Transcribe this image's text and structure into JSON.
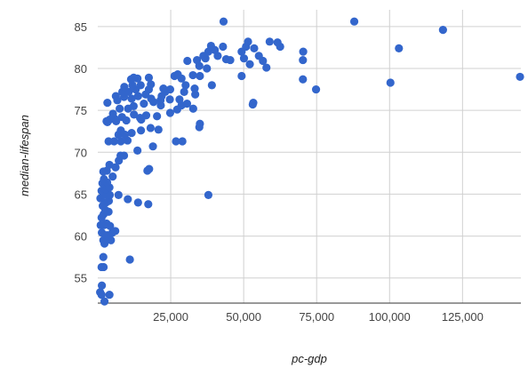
{
  "chart_data": {
    "type": "scatter",
    "title": "",
    "xlabel": "pc-gdp",
    "ylabel": "median-lifespan",
    "xlim": [
      0,
      145000
    ],
    "ylim": [
      52,
      87
    ],
    "x_ticks": [
      25000,
      50000,
      75000,
      100000,
      125000
    ],
    "x_tick_labels": [
      "25,000",
      "50,000",
      "75,000",
      "100,000",
      "125,000"
    ],
    "y_ticks": [
      55,
      60,
      65,
      70,
      75,
      80,
      85
    ],
    "y_tick_labels": [
      "55",
      "60",
      "65",
      "70",
      "75",
      "80",
      "85"
    ],
    "grid": true,
    "legend": "none",
    "marker_color": "#3366cc",
    "series": [
      {
        "points": [
          [
            800,
            53.3
          ],
          [
            1300,
            53.0
          ],
          [
            2300,
            52.2
          ],
          [
            4000,
            53.0
          ],
          [
            1400,
            54.1
          ],
          [
            1300,
            56.3
          ],
          [
            2000,
            56.3
          ],
          [
            1900,
            57.5
          ],
          [
            11000,
            57.2
          ],
          [
            1900,
            59.5
          ],
          [
            2300,
            59.1
          ],
          [
            2800,
            59.5
          ],
          [
            4500,
            59.5
          ],
          [
            1400,
            60.4
          ],
          [
            3200,
            60.1
          ],
          [
            5000,
            60.4
          ],
          [
            6000,
            60.6
          ],
          [
            1000,
            61.3
          ],
          [
            2100,
            61.3
          ],
          [
            3000,
            61.5
          ],
          [
            4200,
            61.2
          ],
          [
            1300,
            62.2
          ],
          [
            2000,
            62.6
          ],
          [
            3700,
            62.9
          ],
          [
            2600,
            63.1
          ],
          [
            1700,
            63.6
          ],
          [
            2800,
            64.0
          ],
          [
            3800,
            64.2
          ],
          [
            900,
            64.5
          ],
          [
            2000,
            64.9
          ],
          [
            4100,
            64.9
          ],
          [
            7100,
            64.9
          ],
          [
            10300,
            64.4
          ],
          [
            13800,
            64.0
          ],
          [
            17300,
            63.8
          ],
          [
            37900,
            64.9
          ],
          [
            1300,
            65.4
          ],
          [
            2700,
            65.6
          ],
          [
            4000,
            65.8
          ],
          [
            1600,
            66.3
          ],
          [
            3200,
            66.4
          ],
          [
            2100,
            66.8
          ],
          [
            5100,
            67.1
          ],
          [
            1900,
            67.7
          ],
          [
            3100,
            67.8
          ],
          [
            6100,
            68.2
          ],
          [
            4000,
            68.5
          ],
          [
            7200,
            69.0
          ],
          [
            17000,
            67.8
          ],
          [
            17600,
            68.0
          ],
          [
            7800,
            69.6
          ],
          [
            9000,
            69.6
          ],
          [
            13600,
            70.2
          ],
          [
            18900,
            70.7
          ],
          [
            3700,
            71.3
          ],
          [
            5600,
            71.3
          ],
          [
            7900,
            71.3
          ],
          [
            10200,
            71.4
          ],
          [
            26800,
            71.3
          ],
          [
            29000,
            71.3
          ],
          [
            7100,
            72.1
          ],
          [
            9300,
            72.1
          ],
          [
            11600,
            72.3
          ],
          [
            14800,
            72.6
          ],
          [
            18100,
            72.9
          ],
          [
            20800,
            72.7
          ],
          [
            34800,
            73.0
          ],
          [
            35000,
            73.4
          ],
          [
            3300,
            73.6
          ],
          [
            4100,
            73.9
          ],
          [
            5800,
            74.0
          ],
          [
            6300,
            73.7
          ],
          [
            8300,
            74.2
          ],
          [
            9800,
            73.8
          ],
          [
            12400,
            74.5
          ],
          [
            14500,
            74.1
          ],
          [
            16600,
            74.4
          ],
          [
            20300,
            74.3
          ],
          [
            24800,
            74.7
          ],
          [
            27200,
            75.1
          ],
          [
            32700,
            75.2
          ],
          [
            5200,
            74.6
          ],
          [
            7500,
            75.2
          ],
          [
            10400,
            75.2
          ],
          [
            12300,
            75.5
          ],
          [
            15800,
            75.8
          ],
          [
            19100,
            76.0
          ],
          [
            21500,
            76.2
          ],
          [
            28700,
            75.6
          ],
          [
            30600,
            75.8
          ],
          [
            53100,
            75.7
          ],
          [
            53300,
            75.9
          ],
          [
            3300,
            75.9
          ],
          [
            6700,
            76.2
          ],
          [
            9000,
            76.6
          ],
          [
            11600,
            76.4
          ],
          [
            13800,
            76.7
          ],
          [
            16400,
            76.9
          ],
          [
            18300,
            76.4
          ],
          [
            21900,
            76.7
          ],
          [
            24700,
            76.3
          ],
          [
            28000,
            76.3
          ],
          [
            33400,
            76.9
          ],
          [
            6200,
            76.7
          ],
          [
            8400,
            77.2
          ],
          [
            10600,
            77.2
          ],
          [
            13000,
            77.5
          ],
          [
            17500,
            77.5
          ],
          [
            23100,
            77.2
          ],
          [
            24800,
            77.5
          ],
          [
            29600,
            77.2
          ],
          [
            33200,
            77.6
          ],
          [
            74800,
            77.5
          ],
          [
            9100,
            77.8
          ],
          [
            11900,
            78.0
          ],
          [
            14700,
            78.0
          ],
          [
            18200,
            78.1
          ],
          [
            22500,
            77.6
          ],
          [
            30100,
            78.0
          ],
          [
            39100,
            78.0
          ],
          [
            100300,
            78.3
          ],
          [
            11400,
            78.7
          ],
          [
            13600,
            78.8
          ],
          [
            17500,
            78.9
          ],
          [
            26300,
            79.1
          ],
          [
            28700,
            78.8
          ],
          [
            35000,
            79.1
          ],
          [
            49300,
            79.1
          ],
          [
            70300,
            78.7
          ],
          [
            144700,
            79.0
          ],
          [
            12300,
            78.9
          ],
          [
            27400,
            79.3
          ],
          [
            34800,
            80.3
          ],
          [
            37400,
            80.0
          ],
          [
            52100,
            80.5
          ],
          [
            56600,
            80.9
          ],
          [
            57800,
            80.1
          ],
          [
            30700,
            80.9
          ],
          [
            34000,
            81.0
          ],
          [
            36900,
            81.2
          ],
          [
            41100,
            81.5
          ],
          [
            44000,
            81.1
          ],
          [
            50100,
            81.2
          ],
          [
            55200,
            81.5
          ],
          [
            70300,
            81.0
          ],
          [
            37900,
            82.0
          ],
          [
            40100,
            82.2
          ],
          [
            42900,
            82.6
          ],
          [
            50800,
            82.6
          ],
          [
            53600,
            82.4
          ],
          [
            62500,
            82.6
          ],
          [
            70400,
            82.0
          ],
          [
            103200,
            82.4
          ],
          [
            38800,
            82.7
          ],
          [
            49300,
            82.0
          ],
          [
            58900,
            83.2
          ],
          [
            61600,
            83.1
          ],
          [
            43100,
            85.6
          ],
          [
            87900,
            85.6
          ],
          [
            118300,
            84.6
          ],
          [
            51500,
            83.2
          ],
          [
            45400,
            81.0
          ],
          [
            36200,
            81.5
          ],
          [
            32600,
            79.2
          ],
          [
            21600,
            75.6
          ],
          [
            14900,
            73.9
          ],
          [
            7900,
            72.6
          ],
          [
            3000,
            73.7
          ]
        ]
      }
    ]
  }
}
